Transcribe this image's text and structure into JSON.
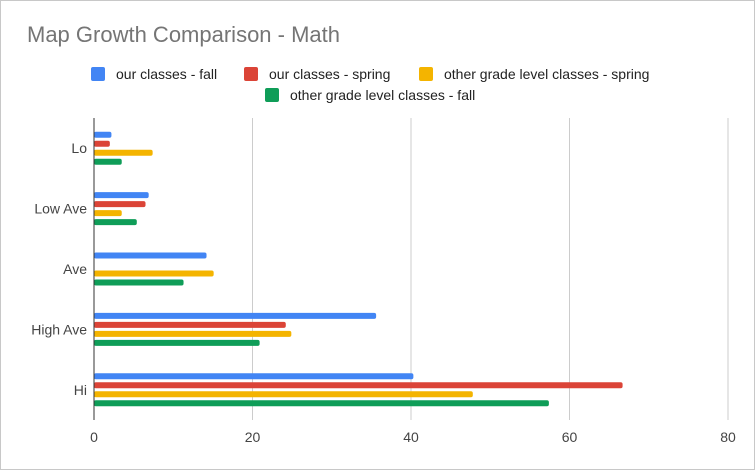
{
  "chart_data": {
    "type": "bar",
    "orientation": "horizontal",
    "title": "Map Growth Comparison - Math",
    "categories": [
      "Lo",
      "Low Ave",
      "Ave",
      "High Ave",
      "Hi"
    ],
    "series": [
      {
        "name": "our classes - fall",
        "color": "#4285f4",
        "values": [
          2.2,
          6.9,
          14.2,
          35.6,
          40.3
        ]
      },
      {
        "name": "our classes - spring",
        "color": "#db4437",
        "values": [
          2.0,
          6.5,
          0,
          24.2,
          66.7
        ]
      },
      {
        "name": "other grade level classes - spring",
        "color": "#f4b400",
        "values": [
          7.4,
          3.5,
          15.1,
          24.9,
          47.8
        ]
      },
      {
        "name": "other grade level classes - fall",
        "color": "#0f9d58",
        "values": [
          3.5,
          5.4,
          11.3,
          20.9,
          57.4
        ]
      }
    ],
    "xlim": [
      0,
      80
    ],
    "xticks": [
      "0",
      "20",
      "40",
      "60",
      "80"
    ],
    "grid": true,
    "legend_position": "top"
  }
}
